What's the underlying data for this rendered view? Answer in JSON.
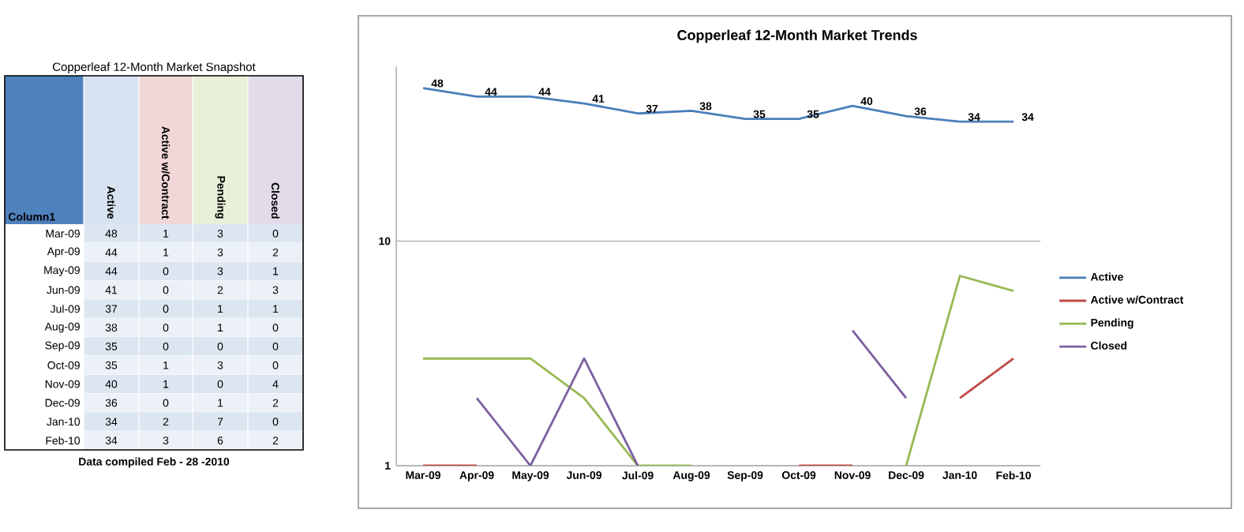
{
  "chart_data": [
    {
      "type": "heatmap",
      "title": "Copperleaf 12-Month Market Snapshot",
      "categories": [
        "Active",
        "Active w/Contract",
        "Pending",
        "Closed"
      ],
      "y_categories": [
        "Mar-09",
        "Apr-09",
        "May-09",
        "Jun-09",
        "Jul-09",
        "Aug-09",
        "Sep-09",
        "Oct-09",
        "Nov-09",
        "Dec-09",
        "Jan-10",
        "Feb-10"
      ],
      "cells": [
        [
          48,
          1,
          3,
          0
        ],
        [
          44,
          1,
          3,
          2
        ],
        [
          44,
          0,
          3,
          1
        ],
        [
          41,
          0,
          2,
          3
        ],
        [
          37,
          0,
          1,
          1
        ],
        [
          38,
          0,
          1,
          0
        ],
        [
          35,
          0,
          0,
          0
        ],
        [
          35,
          1,
          3,
          0
        ],
        [
          40,
          1,
          0,
          4
        ],
        [
          36,
          0,
          1,
          2
        ],
        [
          34,
          2,
          7,
          0
        ],
        [
          34,
          3,
          6,
          2
        ]
      ],
      "data_labels": true,
      "annotations": [
        "Column1",
        "Data compiled Feb - 28 -2010"
      ]
    },
    {
      "type": "line",
      "title": "Copperleaf 12-Month Market Trends",
      "categories": [
        "Mar-09",
        "Apr-09",
        "May-09",
        "Jun-09",
        "Jul-09",
        "Aug-09",
        "Sep-09",
        "Oct-09",
        "Nov-09",
        "Dec-09",
        "Jan-10",
        "Feb-10"
      ],
      "series": [
        {
          "name": "Active",
          "color": "#4a7ebb",
          "values": [
            48,
            44,
            44,
            41,
            37,
            38,
            35,
            35,
            40,
            36,
            34,
            34
          ],
          "value_labels": [
            "48",
            "44",
            "44",
            "41",
            "37",
            "38",
            "35",
            "35",
            "40",
            "36",
            "34",
            "34"
          ]
        },
        {
          "name": "Active w/Contract",
          "color": "#be4b48",
          "values": [
            1,
            1,
            null,
            null,
            null,
            null,
            null,
            1,
            1,
            null,
            2,
            3
          ]
        },
        {
          "name": "Pending",
          "color": "#98b954",
          "values": [
            3,
            3,
            3,
            2,
            1,
            1,
            null,
            null,
            null,
            1,
            7,
            6
          ]
        },
        {
          "name": "Closed",
          "color": "#7d60a0",
          "values": [
            null,
            2,
            1,
            3,
            1,
            null,
            null,
            null,
            4,
            2,
            null,
            null
          ]
        }
      ],
      "log": "y",
      "ylim": [
        1,
        60
      ],
      "yticks": [
        1,
        10
      ],
      "grid": "y",
      "legend": "right"
    }
  ]
}
